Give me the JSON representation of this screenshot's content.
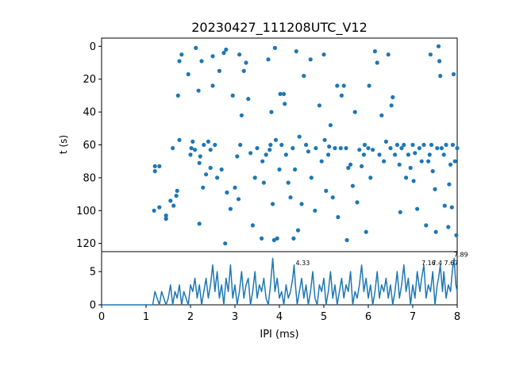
{
  "chart_data": [
    {
      "type": "scatter",
      "title": "20230427_111208UTC_V12",
      "xlabel": "",
      "ylabel": "t (s)",
      "xlim": [
        0,
        8
      ],
      "ylim": [
        125,
        -5
      ],
      "y_inverted": true,
      "yticks": [
        0,
        20,
        40,
        60,
        80,
        100,
        120
      ],
      "ytick_labels": [
        "0",
        "20",
        "40",
        "60",
        "80",
        "100",
        "120"
      ],
      "color": "#1f77b4",
      "points": [
        [
          1.18,
          100
        ],
        [
          1.2,
          76
        ],
        [
          1.2,
          73
        ],
        [
          1.3,
          73
        ],
        [
          1.3,
          98
        ],
        [
          1.45,
          103
        ],
        [
          1.45,
          105
        ],
        [
          1.55,
          94
        ],
        [
          1.6,
          62
        ],
        [
          1.62,
          97
        ],
        [
          1.68,
          91
        ],
        [
          1.7,
          88
        ],
        [
          1.72,
          30
        ],
        [
          1.75,
          57
        ],
        [
          1.75,
          9
        ],
        [
          1.8,
          5
        ],
        [
          1.95,
          17
        ],
        [
          2.0,
          66
        ],
        [
          2.02,
          62
        ],
        [
          2.05,
          58
        ],
        [
          2.1,
          63
        ],
        [
          2.12,
          1
        ],
        [
          2.18,
          27
        ],
        [
          2.2,
          71
        ],
        [
          2.2,
          108
        ],
        [
          2.22,
          67
        ],
        [
          2.25,
          9
        ],
        [
          2.28,
          86
        ],
        [
          2.3,
          60
        ],
        [
          2.35,
          78
        ],
        [
          2.4,
          58
        ],
        [
          2.45,
          63
        ],
        [
          2.45,
          74
        ],
        [
          2.5,
          6
        ],
        [
          2.5,
          24
        ],
        [
          2.55,
          60
        ],
        [
          2.6,
          80
        ],
        [
          2.65,
          15
        ],
        [
          2.7,
          75
        ],
        [
          2.75,
          4
        ],
        [
          2.78,
          120
        ],
        [
          2.8,
          2
        ],
        [
          2.82,
          89
        ],
        [
          2.9,
          99
        ],
        [
          2.95,
          30
        ],
        [
          3.0,
          86
        ],
        [
          3.05,
          67
        ],
        [
          3.08,
          93
        ],
        [
          3.1,
          5
        ],
        [
          3.12,
          60
        ],
        [
          3.15,
          42
        ],
        [
          3.2,
          15
        ],
        [
          3.25,
          10
        ],
        [
          3.3,
          32
        ],
        [
          3.35,
          65
        ],
        [
          3.4,
          109
        ],
        [
          3.45,
          80
        ],
        [
          3.5,
          62
        ],
        [
          3.6,
          117
        ],
        [
          3.62,
          70
        ],
        [
          3.65,
          83
        ],
        [
          3.7,
          66
        ],
        [
          3.75,
          8
        ],
        [
          3.78,
          63
        ],
        [
          3.8,
          60
        ],
        [
          3.82,
          40
        ],
        [
          3.85,
          96
        ],
        [
          3.88,
          118
        ],
        [
          3.9,
          1
        ],
        [
          3.92,
          57
        ],
        [
          3.95,
          117
        ],
        [
          4.0,
          75
        ],
        [
          4.02,
          29
        ],
        [
          4.05,
          60
        ],
        [
          4.1,
          29
        ],
        [
          4.12,
          35
        ],
        [
          4.15,
          66
        ],
        [
          4.2,
          83
        ],
        [
          4.25,
          92
        ],
        [
          4.3,
          62
        ],
        [
          4.32,
          117
        ],
        [
          4.35,
          75
        ],
        [
          4.38,
          3
        ],
        [
          4.42,
          112
        ],
        [
          4.45,
          55
        ],
        [
          4.5,
          96
        ],
        [
          4.55,
          18
        ],
        [
          4.6,
          60
        ],
        [
          4.65,
          64
        ],
        [
          4.7,
          8
        ],
        [
          4.72,
          80
        ],
        [
          4.8,
          100
        ],
        [
          4.82,
          62
        ],
        [
          4.9,
          36
        ],
        [
          4.95,
          70
        ],
        [
          5.0,
          5
        ],
        [
          5.02,
          57
        ],
        [
          5.05,
          88
        ],
        [
          5.1,
          66
        ],
        [
          5.12,
          61
        ],
        [
          5.15,
          48
        ],
        [
          5.2,
          92
        ],
        [
          5.25,
          62
        ],
        [
          5.3,
          24
        ],
        [
          5.32,
          104
        ],
        [
          5.38,
          62
        ],
        [
          5.4,
          30
        ],
        [
          5.45,
          24
        ],
        [
          5.5,
          62
        ],
        [
          5.52,
          118
        ],
        [
          5.55,
          74
        ],
        [
          5.6,
          72
        ],
        [
          5.65,
          85
        ],
        [
          5.7,
          40
        ],
        [
          5.75,
          95
        ],
        [
          5.8,
          63
        ],
        [
          5.85,
          73
        ],
        [
          5.9,
          66
        ],
        [
          5.92,
          60
        ],
        [
          5.95,
          113
        ],
        [
          6.0,
          62
        ],
        [
          6.02,
          24
        ],
        [
          6.05,
          80
        ],
        [
          6.1,
          63
        ],
        [
          6.15,
          3
        ],
        [
          6.2,
          10
        ],
        [
          6.25,
          66
        ],
        [
          6.3,
          42
        ],
        [
          6.35,
          70
        ],
        [
          6.4,
          58
        ],
        [
          6.45,
          5
        ],
        [
          6.5,
          62
        ],
        [
          6.52,
          36
        ],
        [
          6.55,
          31
        ],
        [
          6.6,
          66
        ],
        [
          6.65,
          60
        ],
        [
          6.7,
          72
        ],
        [
          6.72,
          101
        ],
        [
          6.75,
          62
        ],
        [
          6.8,
          60
        ],
        [
          6.85,
          80
        ],
        [
          6.9,
          66
        ],
        [
          6.95,
          74
        ],
        [
          7.0,
          60
        ],
        [
          7.02,
          82
        ],
        [
          7.05,
          65
        ],
        [
          7.1,
          99
        ],
        [
          7.15,
          62
        ],
        [
          7.2,
          70
        ],
        [
          7.25,
          60
        ],
        [
          7.3,
          109
        ],
        [
          7.35,
          70
        ],
        [
          7.38,
          66
        ],
        [
          7.4,
          5
        ],
        [
          7.42,
          60
        ],
        [
          7.45,
          76
        ],
        [
          7.5,
          87
        ],
        [
          7.52,
          113
        ],
        [
          7.55,
          62
        ],
        [
          7.58,
          0
        ],
        [
          7.6,
          9
        ],
        [
          7.62,
          18
        ],
        [
          7.65,
          62
        ],
        [
          7.7,
          66
        ],
        [
          7.72,
          97
        ],
        [
          7.75,
          60
        ],
        [
          7.8,
          110
        ],
        [
          7.82,
          84
        ],
        [
          7.85,
          72
        ],
        [
          7.88,
          98
        ],
        [
          7.9,
          60
        ],
        [
          7.92,
          17
        ],
        [
          7.95,
          70
        ],
        [
          7.98,
          115
        ],
        [
          8.0,
          62
        ]
      ]
    },
    {
      "type": "line",
      "title": "",
      "xlabel": "IPI (ms)",
      "ylabel": "",
      "xlim": [
        0,
        8
      ],
      "ylim": [
        0,
        8
      ],
      "xticks": [
        0,
        1,
        2,
        3,
        4,
        5,
        6,
        7,
        8
      ],
      "xtick_labels": [
        "0",
        "1",
        "2",
        "3",
        "4",
        "5",
        "6",
        "7",
        "8"
      ],
      "yticks": [
        0,
        5
      ],
      "ytick_labels": [
        "0",
        "5"
      ],
      "color": "#1f77b4",
      "x": [
        0.0,
        0.1,
        0.2,
        0.3,
        0.4,
        0.5,
        0.6,
        0.7,
        0.8,
        0.9,
        1.0,
        1.1,
        1.15,
        1.2,
        1.25,
        1.3,
        1.35,
        1.4,
        1.45,
        1.5,
        1.55,
        1.6,
        1.65,
        1.7,
        1.75,
        1.8,
        1.85,
        1.9,
        1.95,
        2.0,
        2.05,
        2.1,
        2.15,
        2.2,
        2.25,
        2.3,
        2.35,
        2.4,
        2.45,
        2.5,
        2.55,
        2.6,
        2.65,
        2.7,
        2.75,
        2.8,
        2.85,
        2.9,
        2.95,
        3.0,
        3.05,
        3.1,
        3.15,
        3.2,
        3.25,
        3.3,
        3.35,
        3.4,
        3.45,
        3.5,
        3.55,
        3.6,
        3.65,
        3.7,
        3.75,
        3.8,
        3.85,
        3.9,
        3.95,
        4.0,
        4.05,
        4.1,
        4.15,
        4.2,
        4.25,
        4.3,
        4.33,
        4.36,
        4.4,
        4.45,
        4.5,
        4.55,
        4.6,
        4.65,
        4.7,
        4.75,
        4.8,
        4.85,
        4.9,
        4.95,
        5.0,
        5.05,
        5.1,
        5.15,
        5.2,
        5.25,
        5.3,
        5.35,
        5.4,
        5.45,
        5.5,
        5.55,
        5.6,
        5.65,
        5.7,
        5.75,
        5.8,
        5.85,
        5.9,
        5.95,
        6.0,
        6.05,
        6.1,
        6.15,
        6.2,
        6.25,
        6.3,
        6.35,
        6.4,
        6.45,
        6.5,
        6.55,
        6.6,
        6.65,
        6.7,
        6.75,
        6.8,
        6.85,
        6.9,
        6.95,
        7.0,
        7.05,
        7.1,
        7.16,
        7.2,
        7.25,
        7.3,
        7.35,
        7.4,
        7.45,
        7.5,
        7.55,
        7.58,
        7.62,
        7.67,
        7.7,
        7.75,
        7.8,
        7.85,
        7.89,
        7.93,
        7.97,
        8.0
      ],
      "values": [
        0,
        0,
        0,
        0,
        0,
        0,
        0,
        0,
        0,
        0,
        0,
        0,
        0,
        2,
        1,
        0,
        2,
        1,
        0,
        1,
        3,
        0,
        2,
        1,
        3,
        0,
        2,
        1,
        0,
        3,
        2,
        4,
        1,
        3,
        0,
        2,
        4,
        1,
        3,
        6,
        2,
        5,
        1,
        3,
        0,
        4,
        2,
        6,
        1,
        3,
        0,
        2,
        5,
        1,
        3,
        4,
        0,
        2,
        5,
        1,
        3,
        2,
        4,
        1,
        0,
        3,
        7,
        2,
        4,
        1,
        2,
        0,
        3,
        1,
        2,
        4,
        6,
        3,
        0,
        2,
        4,
        1,
        3,
        0,
        2,
        5,
        1,
        0,
        3,
        2,
        4,
        0,
        2,
        5,
        1,
        3,
        0,
        2,
        4,
        1,
        3,
        2,
        5,
        0,
        2,
        1,
        3,
        6,
        2,
        4,
        1,
        3,
        0,
        2,
        5,
        1,
        3,
        2,
        4,
        1,
        3,
        0,
        2,
        5,
        1,
        3,
        6,
        2,
        4,
        0,
        3,
        1,
        5,
        2,
        4,
        6,
        1,
        3,
        2,
        5,
        0,
        3,
        4,
        6,
        2,
        5,
        1,
        3,
        2,
        5,
        7,
        3,
        2
      ],
      "annotations": [
        {
          "x": 4.33,
          "y": 6.0,
          "text": "4.33"
        },
        {
          "x": 7.16,
          "y": 6.0,
          "text": "7.16"
        },
        {
          "x": 7.4,
          "y": 6.0,
          "text": "7.4"
        },
        {
          "x": 7.67,
          "y": 6.0,
          "text": "7.67"
        },
        {
          "x": 7.89,
          "y": 7.2,
          "text": "7.89"
        }
      ]
    }
  ]
}
